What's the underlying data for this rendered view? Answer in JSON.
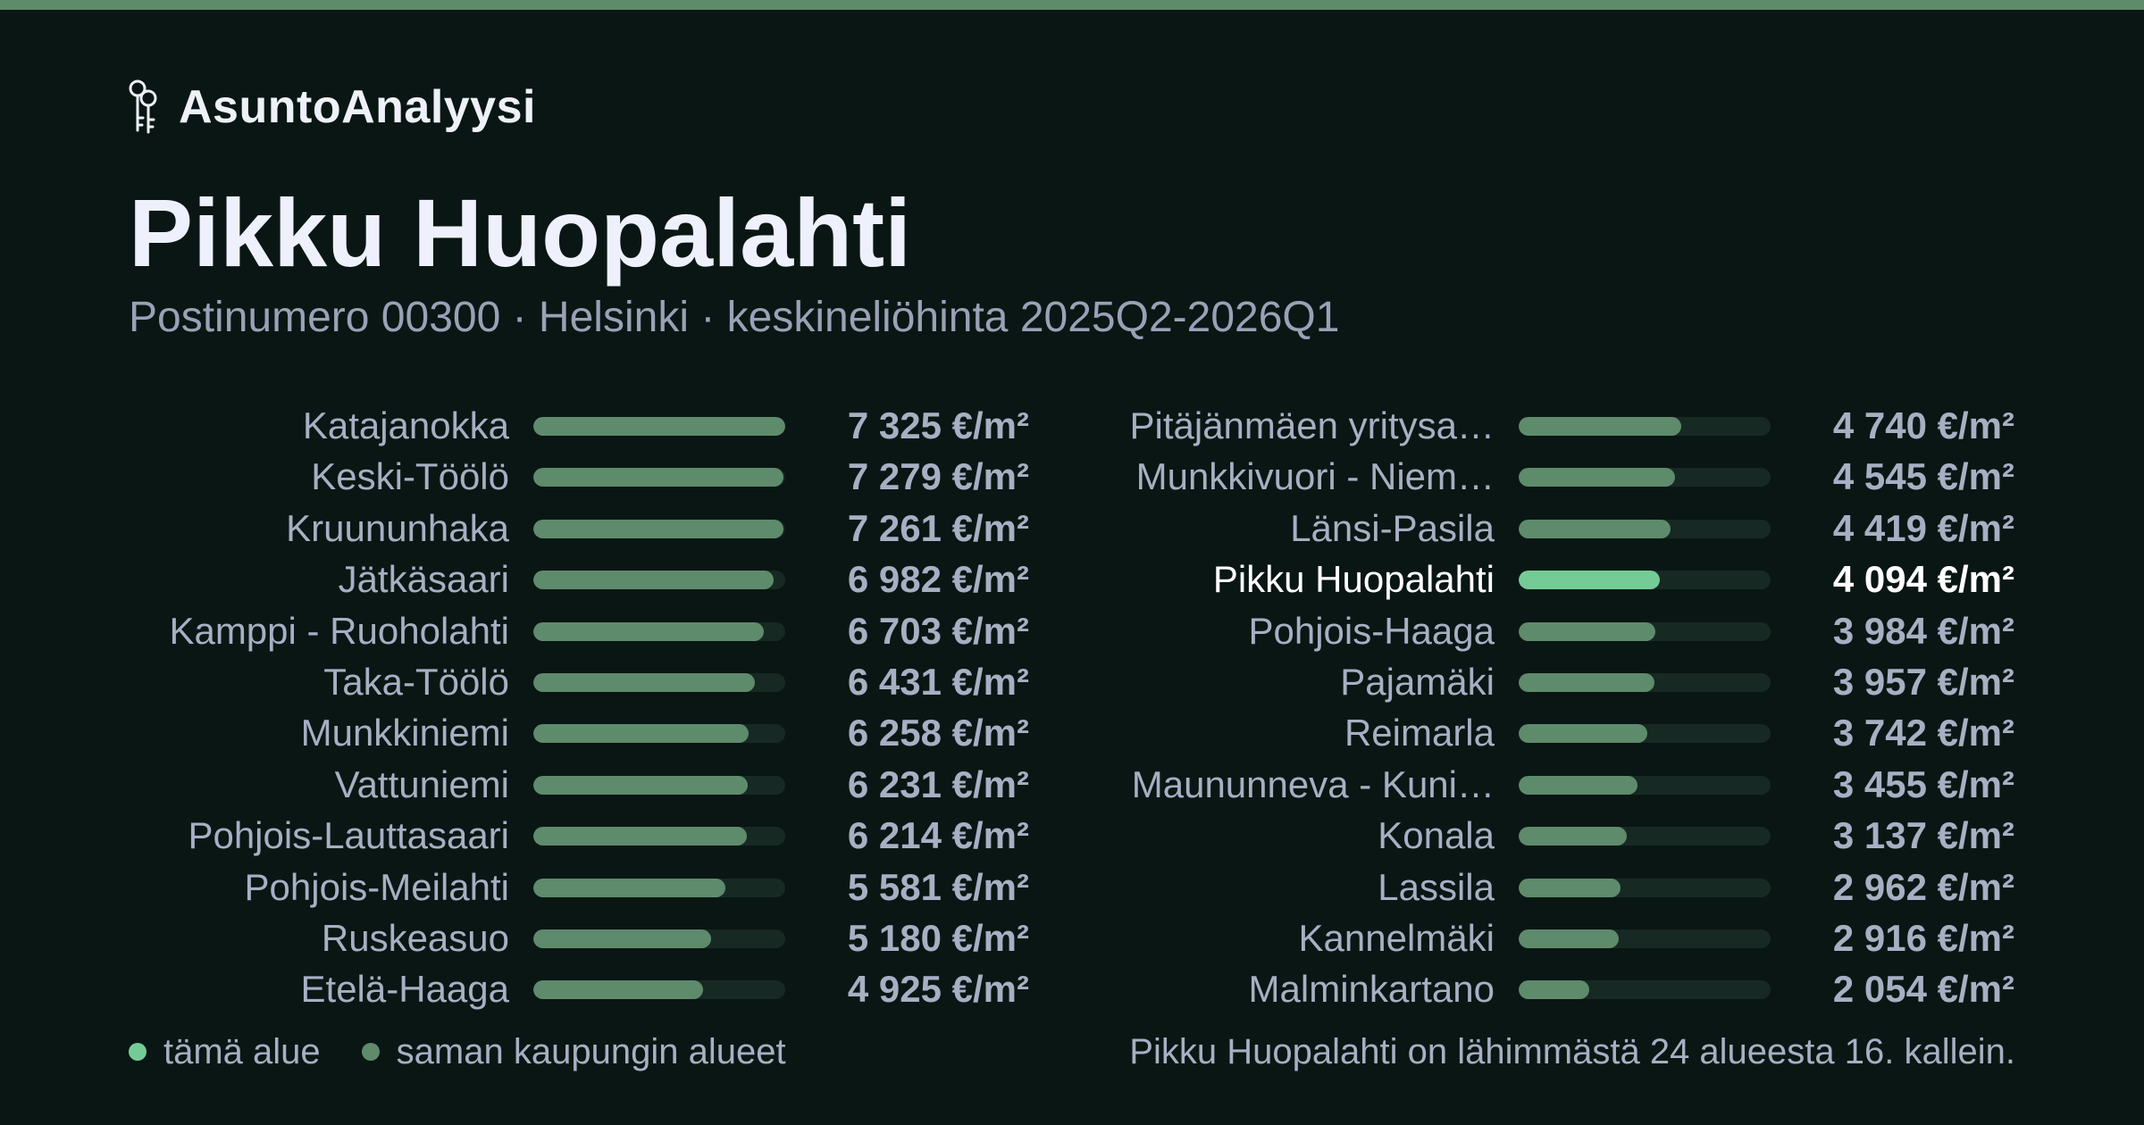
{
  "brand": {
    "name": "AsuntoAnalyysi",
    "icon": "keys-icon"
  },
  "title": "Pikku Huopalahti",
  "subtitle": "Postinumero 00300 · Helsinki · keskineliöhinta 2025Q2-2026Q1",
  "colors": {
    "background": "#0a1614",
    "accent": "#5e8b6b",
    "highlight": "#74cb95",
    "track": "#172923",
    "text_muted": "#a7afc3",
    "text_strong": "#ffffff"
  },
  "chart_data": {
    "type": "bar",
    "orientation": "horizontal",
    "unit": "€/m²",
    "xlim": [
      0,
      7325
    ],
    "highlight": "Pikku Huopalahti",
    "categories": [
      "Katajanokka",
      "Keski-Töölö",
      "Kruununhaka",
      "Jätkäsaari",
      "Kamppi - Ruoholahti",
      "Taka-Töölö",
      "Munkkiniemi",
      "Vattuniemi",
      "Pohjois-Lauttasaari",
      "Pohjois-Meilahti",
      "Ruskeasuo",
      "Etelä-Haaga",
      "Pitäjänmäen yritysa…",
      "Munkkivuori - Niem…",
      "Länsi-Pasila",
      "Pikku Huopalahti",
      "Pohjois-Haaga",
      "Pajamäki",
      "Reimarla",
      "Maununneva - Kuni…",
      "Konala",
      "Lassila",
      "Kannelmäki",
      "Malminkartano"
    ],
    "values": [
      7325,
      7279,
      7261,
      6982,
      6703,
      6431,
      6258,
      6231,
      6214,
      5581,
      5180,
      4925,
      4740,
      4545,
      4419,
      4094,
      3984,
      3957,
      3742,
      3455,
      3137,
      2962,
      2916,
      2054
    ],
    "value_labels": [
      "7 325 €/m²",
      "7 279 €/m²",
      "7 261 €/m²",
      "6 982 €/m²",
      "6 703 €/m²",
      "6 431 €/m²",
      "6 258 €/m²",
      "6 231 €/m²",
      "6 214 €/m²",
      "5 581 €/m²",
      "5 180 €/m²",
      "4 925 €/m²",
      "4 740 €/m²",
      "4 545 €/m²",
      "4 419 €/m²",
      "4 094 €/m²",
      "3 984 €/m²",
      "3 957 €/m²",
      "3 742 €/m²",
      "3 455 €/m²",
      "3 137 €/m²",
      "2 962 €/m²",
      "2 916 €/m²",
      "2 054 €/m²"
    ],
    "legend": [
      {
        "label": "tämä alue",
        "color": "#74cb95"
      },
      {
        "label": "saman kaupungin alueet",
        "color": "#5e8b6b"
      }
    ],
    "legend_position": "bottom-left"
  },
  "footnote": "Pikku Huopalahti on lähimmästä 24 alueesta 16. kallein."
}
